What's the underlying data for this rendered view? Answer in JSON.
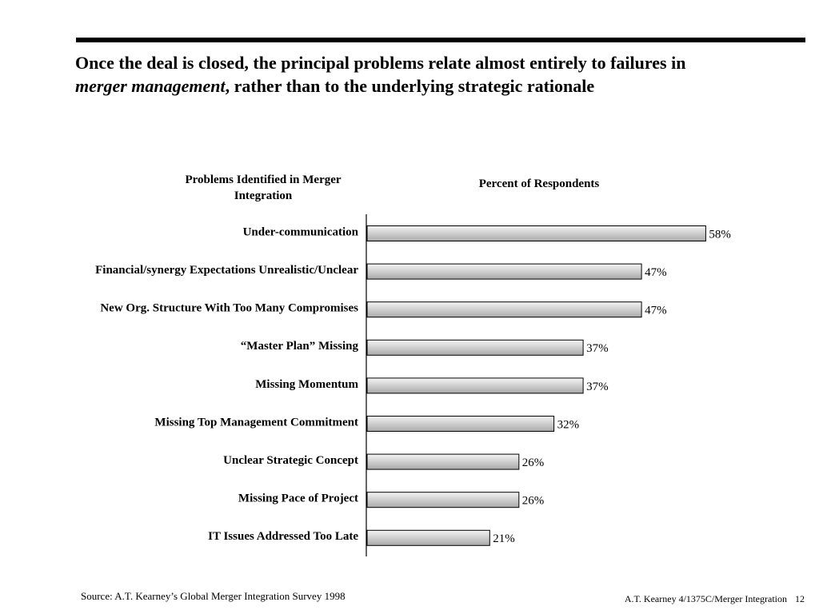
{
  "slide": {
    "title_part1": "Once the deal is closed, the principal problems relate almost entirely to failures in ",
    "title_emphasis": "merger management",
    "title_part2": ", rather than to the underlying strategic rationale",
    "source": "Source:  A.T. Kearney’s Global Merger Integration Survey 1998",
    "footer_left": "A.T. Kearney  4/1375C/Merger Integration",
    "page_number": "12"
  },
  "chart_data": {
    "type": "bar",
    "orientation": "horizontal",
    "category_header": "Problems Identified in Merger Integration",
    "value_header": "Percent of Respondents",
    "categories": [
      "Under-communication",
      "Financial/synergy Expectations Unrealistic/Unclear",
      "New Org. Structure With Too Many Compromises",
      "“Master Plan” Missing",
      "Missing Momentum",
      "Missing Top Management Commitment",
      "Unclear Strategic Concept",
      "Missing Pace of Project",
      "IT Issues Addressed Too Late"
    ],
    "values": [
      58,
      47,
      47,
      37,
      37,
      32,
      26,
      26,
      21
    ],
    "value_labels": [
      "58%",
      "47%",
      "47%",
      "37%",
      "37%",
      "32%",
      "26%",
      "26%",
      "21%"
    ],
    "unit": "%",
    "bar_fill": "gradient gray",
    "bar_colors": {
      "light": "#f4f4f4",
      "dark": "#a9a9a9",
      "outline": "#000000"
    }
  }
}
